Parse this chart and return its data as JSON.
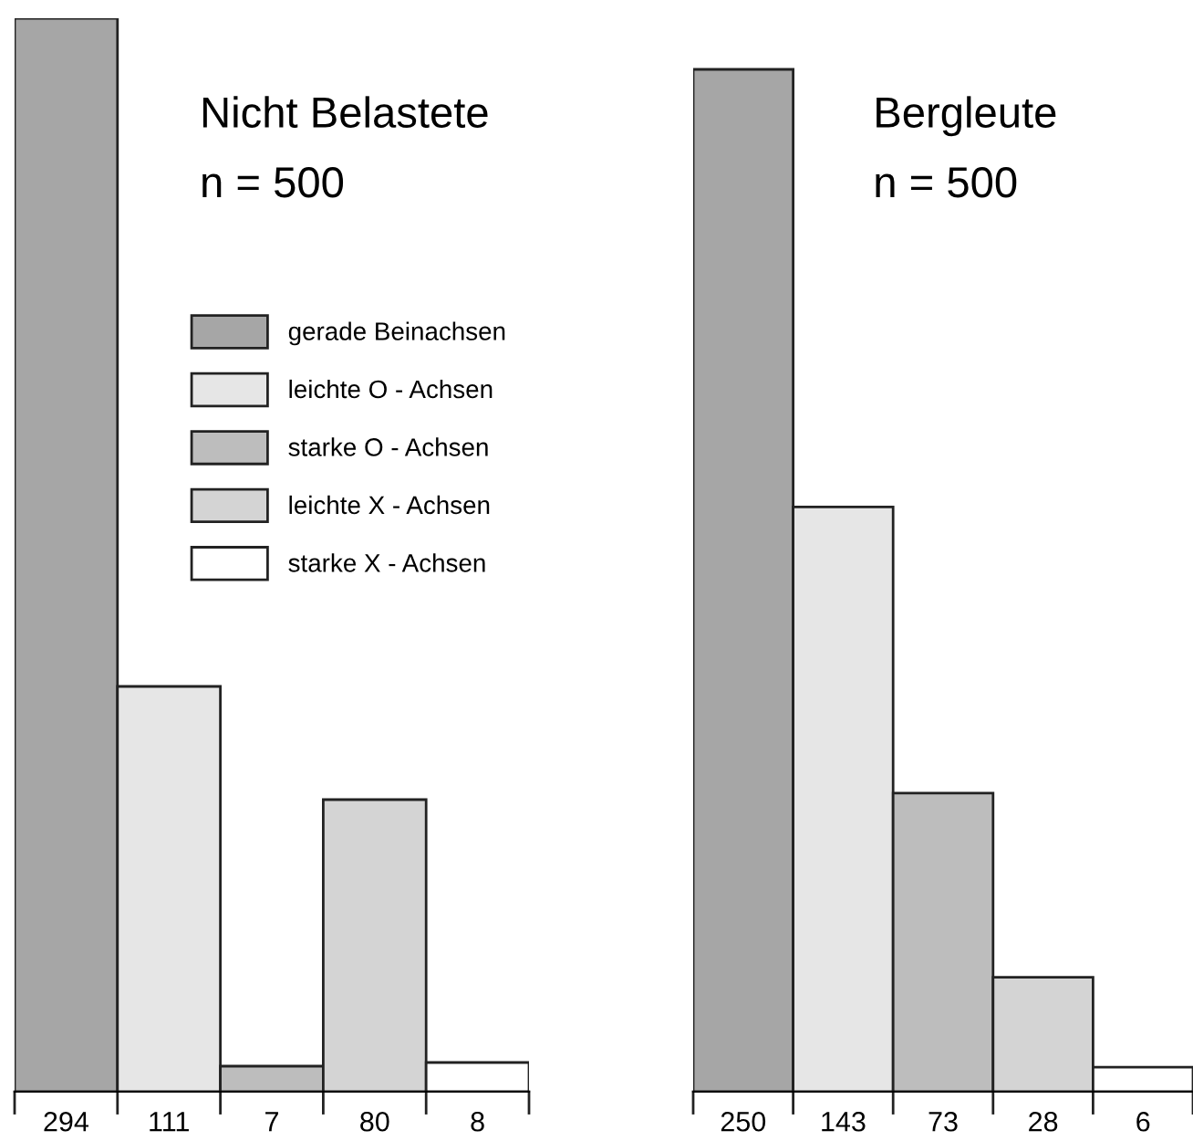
{
  "chart_data": [
    {
      "type": "bar",
      "title": "Nicht Belastete",
      "subtitle": "n = 500",
      "categories": [
        null,
        null,
        null,
        null,
        null
      ],
      "stacked": true,
      "legend": "right",
      "series": [
        {
          "name": "gerade Beinachsen",
          "color": "#a6a6a6",
          "values": [
            294,
            0,
            0,
            0,
            0
          ],
          "value_labels": [
            "294",
            null,
            null,
            null,
            null
          ]
        },
        {
          "name": "leichte O - Achsen",
          "color": "#e6e6e6",
          "values": [
            0,
            111,
            0,
            0,
            0
          ],
          "value_labels": [
            null,
            "111",
            null,
            null,
            null
          ]
        },
        {
          "name": "starke O - Achsen",
          "color": "#bdbdbd",
          "values": [
            0,
            0,
            7,
            0,
            0
          ],
          "value_labels": [
            null,
            null,
            "7",
            null,
            null
          ]
        },
        {
          "name": "leichte X - Achsen",
          "color": "#d4d4d4",
          "values": [
            0,
            0,
            0,
            80,
            0
          ],
          "value_labels": [
            null,
            null,
            null,
            "80",
            null
          ]
        },
        {
          "name": "starke X - Achsen",
          "color": "#ffffff",
          "values": [
            0,
            0,
            0,
            0,
            8
          ],
          "value_labels": [
            null,
            null,
            null,
            null,
            "8"
          ]
        }
      ]
    },
    {
      "type": "bar",
      "title": "Bergleute",
      "subtitle": "n = 500",
      "categories": [
        null,
        null,
        null,
        null,
        null
      ],
      "data_labels": true,
      "values": [
        250,
        143,
        73,
        28,
        6
      ],
      "colors": [
        "#a6a6a6",
        "#e6e6e6",
        "#bdbdbd",
        "#d4d4d4",
        "#ffffff"
      ]
    }
  ]
}
